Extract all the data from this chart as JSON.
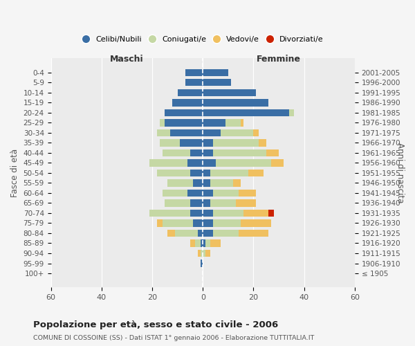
{
  "age_groups": [
    "100+",
    "95-99",
    "90-94",
    "85-89",
    "80-84",
    "75-79",
    "70-74",
    "65-69",
    "60-64",
    "55-59",
    "50-54",
    "45-49",
    "40-44",
    "35-39",
    "30-34",
    "25-29",
    "20-24",
    "15-19",
    "10-14",
    "5-9",
    "0-4"
  ],
  "birth_years": [
    "≤ 1905",
    "1906-1910",
    "1911-1915",
    "1916-1920",
    "1921-1925",
    "1926-1930",
    "1931-1935",
    "1936-1940",
    "1941-1945",
    "1946-1950",
    "1951-1955",
    "1956-1960",
    "1961-1965",
    "1966-1970",
    "1971-1975",
    "1976-1980",
    "1981-1985",
    "1986-1990",
    "1991-1995",
    "1996-2000",
    "2001-2005"
  ],
  "males": {
    "celibi": [
      0,
      1,
      0,
      1,
      2,
      4,
      5,
      5,
      6,
      4,
      5,
      6,
      5,
      9,
      13,
      15,
      15,
      12,
      10,
      7,
      7
    ],
    "coniugati": [
      0,
      0,
      1,
      2,
      9,
      12,
      16,
      10,
      10,
      10,
      13,
      15,
      11,
      8,
      5,
      2,
      0,
      0,
      0,
      0,
      0
    ],
    "vedovi": [
      0,
      0,
      1,
      2,
      3,
      2,
      0,
      0,
      0,
      0,
      0,
      0,
      0,
      0,
      0,
      0,
      0,
      0,
      0,
      0,
      0
    ],
    "divorziati": [
      0,
      0,
      0,
      0,
      0,
      0,
      0,
      0,
      0,
      0,
      0,
      0,
      0,
      0,
      0,
      0,
      0,
      0,
      0,
      0,
      0
    ]
  },
  "females": {
    "nubili": [
      0,
      0,
      0,
      1,
      4,
      4,
      4,
      3,
      4,
      3,
      3,
      5,
      4,
      4,
      7,
      9,
      34,
      26,
      21,
      11,
      10
    ],
    "coniugate": [
      0,
      0,
      1,
      2,
      10,
      11,
      12,
      10,
      10,
      9,
      15,
      22,
      21,
      18,
      13,
      6,
      2,
      0,
      0,
      0,
      0
    ],
    "vedove": [
      0,
      0,
      2,
      4,
      12,
      12,
      10,
      8,
      7,
      3,
      6,
      5,
      5,
      3,
      2,
      1,
      0,
      0,
      0,
      0,
      0
    ],
    "divorziate": [
      0,
      0,
      0,
      0,
      0,
      0,
      2,
      0,
      0,
      0,
      0,
      0,
      0,
      0,
      0,
      0,
      0,
      0,
      0,
      0,
      0
    ]
  },
  "colors": {
    "celibe": "#3A6EA5",
    "coniugato": "#C5D8A4",
    "vedovo": "#F0C060",
    "divorziato": "#CC2200"
  },
  "title": "Popolazione per età, sesso e stato civile - 2006",
  "subtitle": "COMUNE DI COSSOINE (SS) - Dati ISTAT 1° gennaio 2006 - Elaborazione TUTTITALIA.IT",
  "xlabel_left": "Maschi",
  "xlabel_right": "Femmine",
  "ylabel_left": "Fasce di età",
  "ylabel_right": "Anni di nascita",
  "legend_labels": [
    "Celibi/Nubili",
    "Coniugati/e",
    "Vedovi/e",
    "Divorziati/e"
  ],
  "xlim": 60,
  "background_color": "#f5f5f5",
  "plot_background": "#ebebeb"
}
